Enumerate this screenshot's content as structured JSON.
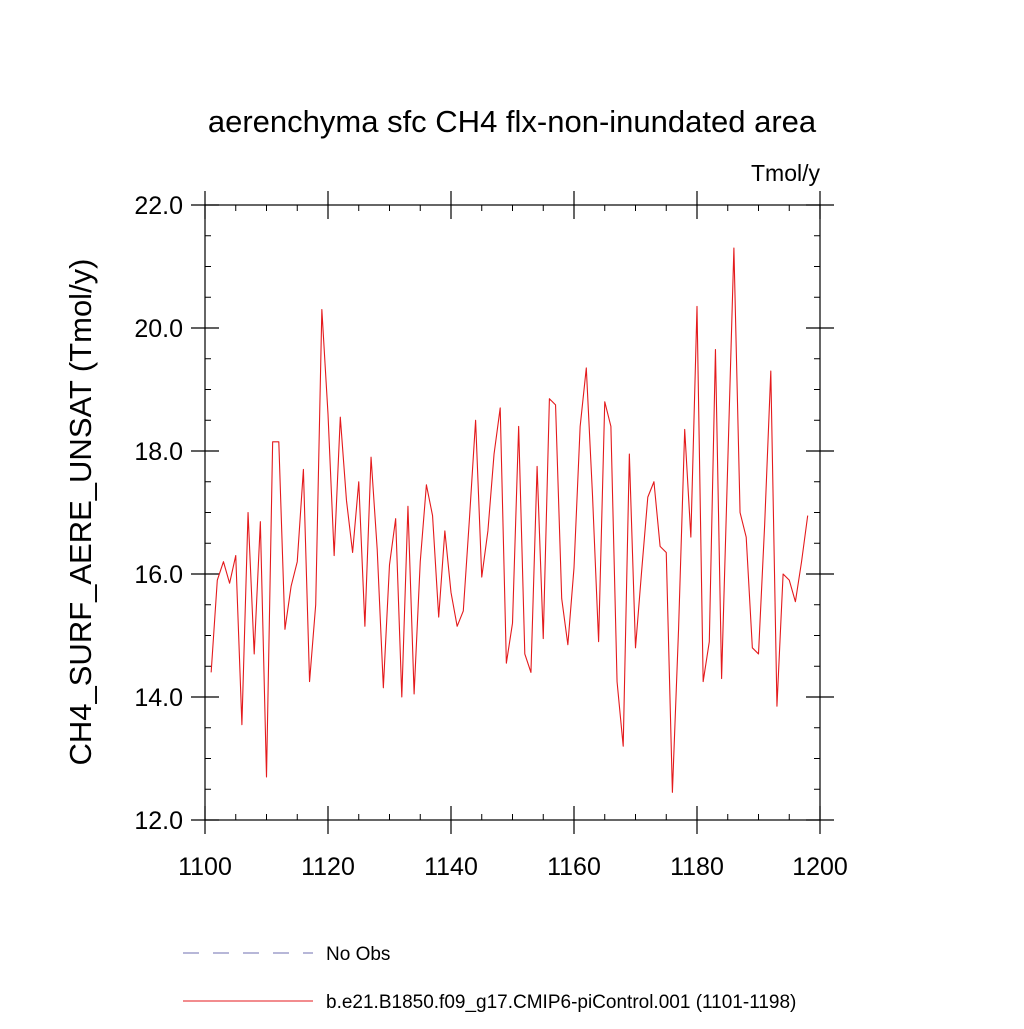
{
  "chart_data": {
    "type": "line",
    "title": "aerenchyma sfc CH4 flx-non-inundated area",
    "units_label": "Tmol/y",
    "ylabel": "CH4_SURF_AERE_UNSAT  (Tmol/y)",
    "xlabel": "",
    "xlim": [
      1100,
      1200
    ],
    "ylim": [
      12.0,
      22.0
    ],
    "x_ticks": [
      1100,
      1120,
      1140,
      1160,
      1180,
      1200
    ],
    "y_ticks": [
      "12.0",
      "14.0",
      "16.0",
      "18.0",
      "20.0",
      "22.0"
    ],
    "grid": false,
    "legend_position": "bottom",
    "legend": [
      {
        "label": "No Obs",
        "style": "dashed",
        "color": "#6f6fb0"
      },
      {
        "label": "b.e21.B1850.f09_g17.CMIP6-piControl.001 (1101-1198)",
        "style": "solid",
        "color": "#e41a1c"
      }
    ],
    "series": [
      {
        "name": "b.e21.B1850.f09_g17.CMIP6-piControl.001 (1101-1198)",
        "color": "#e41a1c",
        "x": [
          1101,
          1102,
          1103,
          1104,
          1105,
          1106,
          1107,
          1108,
          1109,
          1110,
          1111,
          1112,
          1113,
          1114,
          1115,
          1116,
          1117,
          1118,
          1119,
          1120,
          1121,
          1122,
          1123,
          1124,
          1125,
          1126,
          1127,
          1128,
          1129,
          1130,
          1131,
          1132,
          1133,
          1134,
          1135,
          1136,
          1137,
          1138,
          1139,
          1140,
          1141,
          1142,
          1143,
          1144,
          1145,
          1146,
          1147,
          1148,
          1149,
          1150,
          1151,
          1152,
          1153,
          1154,
          1155,
          1156,
          1157,
          1158,
          1159,
          1160,
          1161,
          1162,
          1163,
          1164,
          1165,
          1166,
          1167,
          1168,
          1169,
          1170,
          1171,
          1172,
          1173,
          1174,
          1175,
          1176,
          1177,
          1178,
          1179,
          1180,
          1181,
          1182,
          1183,
          1184,
          1185,
          1186,
          1187,
          1188,
          1189,
          1190,
          1191,
          1192,
          1193,
          1194,
          1195,
          1196,
          1197,
          1198
        ],
        "values": [
          14.4,
          15.9,
          16.2,
          15.85,
          16.3,
          13.55,
          17.0,
          14.7,
          16.85,
          12.7,
          18.15,
          18.15,
          15.1,
          15.8,
          16.2,
          17.7,
          14.25,
          15.5,
          20.3,
          18.6,
          16.3,
          18.55,
          17.2,
          16.35,
          17.5,
          15.15,
          17.9,
          16.4,
          14.15,
          16.15,
          16.9,
          14.0,
          17.1,
          14.05,
          16.2,
          17.45,
          16.95,
          15.3,
          16.7,
          15.7,
          15.15,
          15.4,
          16.9,
          18.5,
          15.95,
          16.7,
          17.95,
          18.7,
          14.55,
          15.2,
          18.4,
          14.7,
          14.4,
          17.75,
          14.95,
          18.85,
          18.75,
          15.6,
          14.85,
          16.1,
          18.4,
          19.35,
          17.3,
          14.9,
          18.8,
          18.4,
          14.25,
          13.2,
          17.95,
          14.8,
          16.05,
          17.25,
          17.5,
          16.45,
          16.35,
          12.45,
          15.1,
          18.35,
          16.6,
          20.35,
          14.25,
          14.9,
          19.65,
          14.3,
          17.8,
          21.3,
          17.0,
          16.6,
          14.8,
          14.7,
          16.8,
          19.3,
          13.85,
          16.0,
          15.9,
          15.55,
          16.2,
          16.95
        ]
      }
    ]
  }
}
